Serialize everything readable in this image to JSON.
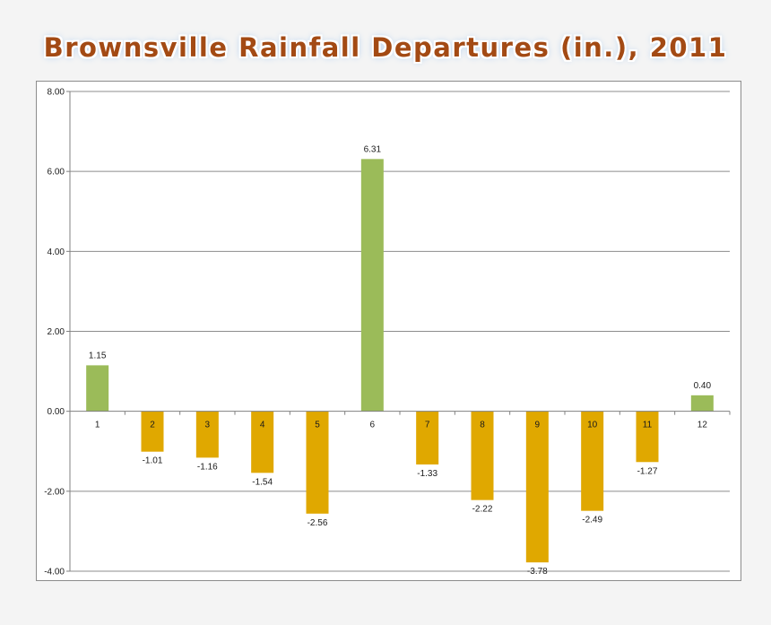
{
  "colors": {
    "positive": "#9bbb59",
    "negative": "#e0a800",
    "axis": "#808080",
    "grid": "#8c8c8c",
    "title": "#a34a14"
  },
  "chart_data": {
    "type": "bar",
    "title": "Brownsville Rainfall Departures (in.), 2011",
    "xlabel": "",
    "ylabel": "",
    "categories": [
      "1",
      "2",
      "3",
      "4",
      "5",
      "6",
      "7",
      "8",
      "9",
      "10",
      "11",
      "12"
    ],
    "values": [
      1.15,
      -1.01,
      -1.16,
      -1.54,
      -2.56,
      6.31,
      -1.33,
      -2.22,
      -3.78,
      -2.49,
      -1.27,
      0.4
    ],
    "data_labels": [
      "1.15",
      "-1.01",
      "-1.16",
      "-1.54",
      "-2.56",
      "6.31",
      "-1.33",
      "-2.22",
      "-3.78",
      "-2.49",
      "-1.27",
      "0.40"
    ],
    "ylim": [
      -4,
      8
    ],
    "yticks": [
      8,
      6,
      4,
      2,
      0,
      -2,
      -4
    ],
    "ytick_labels": [
      "8.00",
      "6.00",
      "4.00",
      "2.00",
      "0.00",
      "-2.00",
      "-4.00"
    ],
    "grid": true,
    "legend": "none"
  }
}
